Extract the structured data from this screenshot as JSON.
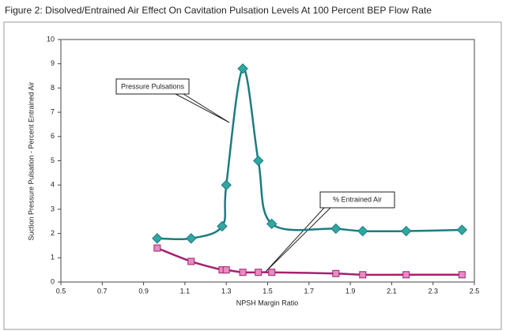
{
  "chart_data": {
    "type": "line",
    "title": "Figure 2: Disolved/Entrained Air Effect On Cavitation Pulsation Levels At 100 Percent BEP Flow Rate",
    "xlabel": "NPSH Margin Ratio",
    "ylabel": "Suction Pressure Pulsation - Percent Entrained Air",
    "xlim": [
      0.5,
      2.5
    ],
    "xticks": [
      0.5,
      0.7,
      0.9,
      1.1,
      1.3,
      1.5,
      1.7,
      1.9,
      2.1,
      2.3,
      2.5
    ],
    "ylim": [
      0,
      10
    ],
    "yticks": [
      0,
      1,
      2,
      3,
      4,
      5,
      6,
      7,
      8,
      9,
      10
    ],
    "series": [
      {
        "name": "Pressure Pulsations",
        "color": "#1d7b80",
        "marker": "diamond",
        "marker_color": "#2fa7a2",
        "x": [
          0.966,
          1.13,
          1.28,
          1.3,
          1.38,
          1.455,
          1.52,
          1.83,
          1.96,
          2.17,
          2.44
        ],
        "values": [
          1.8,
          1.8,
          2.3,
          4.0,
          8.8,
          5.0,
          2.4,
          2.2,
          2.1,
          2.1,
          2.15
        ]
      },
      {
        "name": "% Entrained Air",
        "color": "#a3226f",
        "marker": "square",
        "marker_color": "#e58cc2",
        "x": [
          0.966,
          1.13,
          1.28,
          1.3,
          1.38,
          1.455,
          1.52,
          1.83,
          1.96,
          2.17,
          2.44
        ],
        "values": [
          1.4,
          0.85,
          0.5,
          0.5,
          0.4,
          0.4,
          0.4,
          0.35,
          0.3,
          0.3,
          0.3
        ]
      }
    ]
  }
}
